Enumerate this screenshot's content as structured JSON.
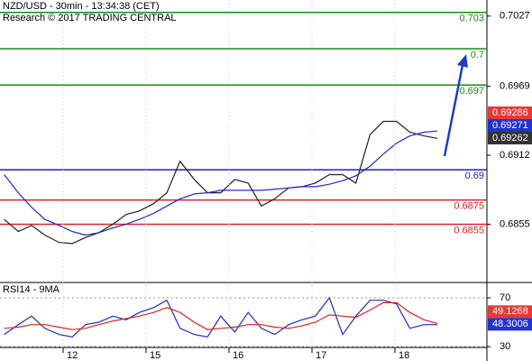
{
  "chart_data": [
    {
      "type": "line",
      "title": "NZD/USD - 30min - 13:34:38 (CET)",
      "subtitle": "Research © 2017 TRADING CENTRAL",
      "xlim": [
        -0.761,
        5.109
      ],
      "ylim": [
        0.68076,
        0.70403
      ],
      "yticks": [
        0.7027,
        0.6969,
        0.6912,
        0.6855
      ],
      "x": [
        -0.71,
        -0.54,
        -0.38,
        -0.22,
        -0.05,
        0.11,
        0.27,
        0.43,
        0.6,
        0.76,
        0.92,
        1.09,
        1.25,
        1.41,
        1.58,
        1.74,
        1.9,
        2.07,
        2.23,
        2.39,
        2.55,
        2.72,
        2.88,
        3.04,
        3.21,
        3.37,
        3.53,
        3.7,
        3.86,
        4.02,
        4.18,
        4.35,
        4.51
      ],
      "series": [
        {
          "color": "#222222",
          "values": [
            0.6859,
            0.6849,
            0.6854,
            0.6846,
            0.684,
            0.6839,
            0.6844,
            0.6848,
            0.6855,
            0.6863,
            0.6866,
            0.6872,
            0.6881,
            0.6907,
            0.6892,
            0.6881,
            0.6881,
            0.6892,
            0.6889,
            0.687,
            0.6876,
            0.6885,
            0.6886,
            0.6889,
            0.6896,
            0.6896,
            0.6889,
            0.6929,
            0.694,
            0.694,
            0.6931,
            0.6928,
            0.6926
          ]
        },
        {
          "color": "#1f2fbf",
          "values": [
            0.6896,
            0.6881,
            0.6869,
            0.6859,
            0.6854,
            0.6849,
            0.6846,
            0.6848,
            0.6852,
            0.6855,
            0.6859,
            0.6864,
            0.687,
            0.6876,
            0.688,
            0.6881,
            0.6883,
            0.6883,
            0.6883,
            0.6883,
            0.6884,
            0.6885,
            0.6886,
            0.6886,
            0.6888,
            0.6891,
            0.6895,
            0.6903,
            0.6913,
            0.6922,
            0.6928,
            0.6931,
            0.6932
          ]
        }
      ],
      "levels": [
        {
          "value": 0.703,
          "color": "#1a8a1a"
        },
        {
          "value": 0.7,
          "color": "#1a8a1a"
        },
        {
          "value": 0.697,
          "color": "#1a8a1a"
        },
        {
          "value": 0.69,
          "color": "#2222aa"
        },
        {
          "value": 0.6875,
          "color": "#dd2222"
        },
        {
          "value": 0.6855,
          "color": "#dd2222"
        }
      ],
      "price_tags": [
        {
          "value": 0.69286,
          "color": "#e53935"
        },
        {
          "value": 0.69271,
          "color": "#2233cc"
        },
        {
          "value": 0.69262,
          "color": "#333333"
        }
      ]
    },
    {
      "type": "line",
      "title": "RSI14 - 9MA",
      "xlim": [
        -0.761,
        5.109
      ],
      "ylim": [
        29.3,
        80.4
      ],
      "yticks": [
        70,
        30
      ],
      "xticks": [
        {
          "value": 0,
          "label": "12"
        },
        {
          "value": 1,
          "label": "15"
        },
        {
          "value": 2,
          "label": "16"
        },
        {
          "value": 3,
          "label": "17"
        },
        {
          "value": 4,
          "label": "18"
        }
      ],
      "x": [
        -0.71,
        -0.54,
        -0.38,
        -0.22,
        -0.05,
        0.11,
        0.27,
        0.43,
        0.6,
        0.76,
        0.92,
        1.09,
        1.25,
        1.41,
        1.58,
        1.74,
        1.9,
        2.07,
        2.23,
        2.39,
        2.55,
        2.72,
        2.88,
        3.04,
        3.21,
        3.37,
        3.53,
        3.7,
        3.86,
        4.02,
        4.18,
        4.35,
        4.51
      ],
      "series": [
        {
          "color": "#1f2fbf",
          "values": [
            40,
            48,
            55,
            45,
            40,
            38,
            48,
            50,
            55,
            52,
            58,
            62,
            68,
            45,
            40,
            38,
            55,
            42,
            58,
            45,
            40,
            48,
            52,
            55,
            70,
            40,
            55,
            68,
            68,
            65,
            45,
            48,
            48
          ]
        },
        {
          "color": "#dd2222",
          "values": [
            45,
            46,
            48,
            48,
            46,
            44,
            45,
            48,
            51,
            53,
            55,
            58,
            62,
            58,
            50,
            44,
            45,
            46,
            48,
            48,
            46,
            45,
            47,
            50,
            56,
            55,
            54,
            60,
            66,
            66,
            58,
            52,
            49
          ]
        }
      ],
      "price_tags": [
        {
          "value": 49.1268,
          "color": "#e53935"
        },
        {
          "value": 48.3006,
          "color": "#2233cc"
        }
      ]
    }
  ]
}
